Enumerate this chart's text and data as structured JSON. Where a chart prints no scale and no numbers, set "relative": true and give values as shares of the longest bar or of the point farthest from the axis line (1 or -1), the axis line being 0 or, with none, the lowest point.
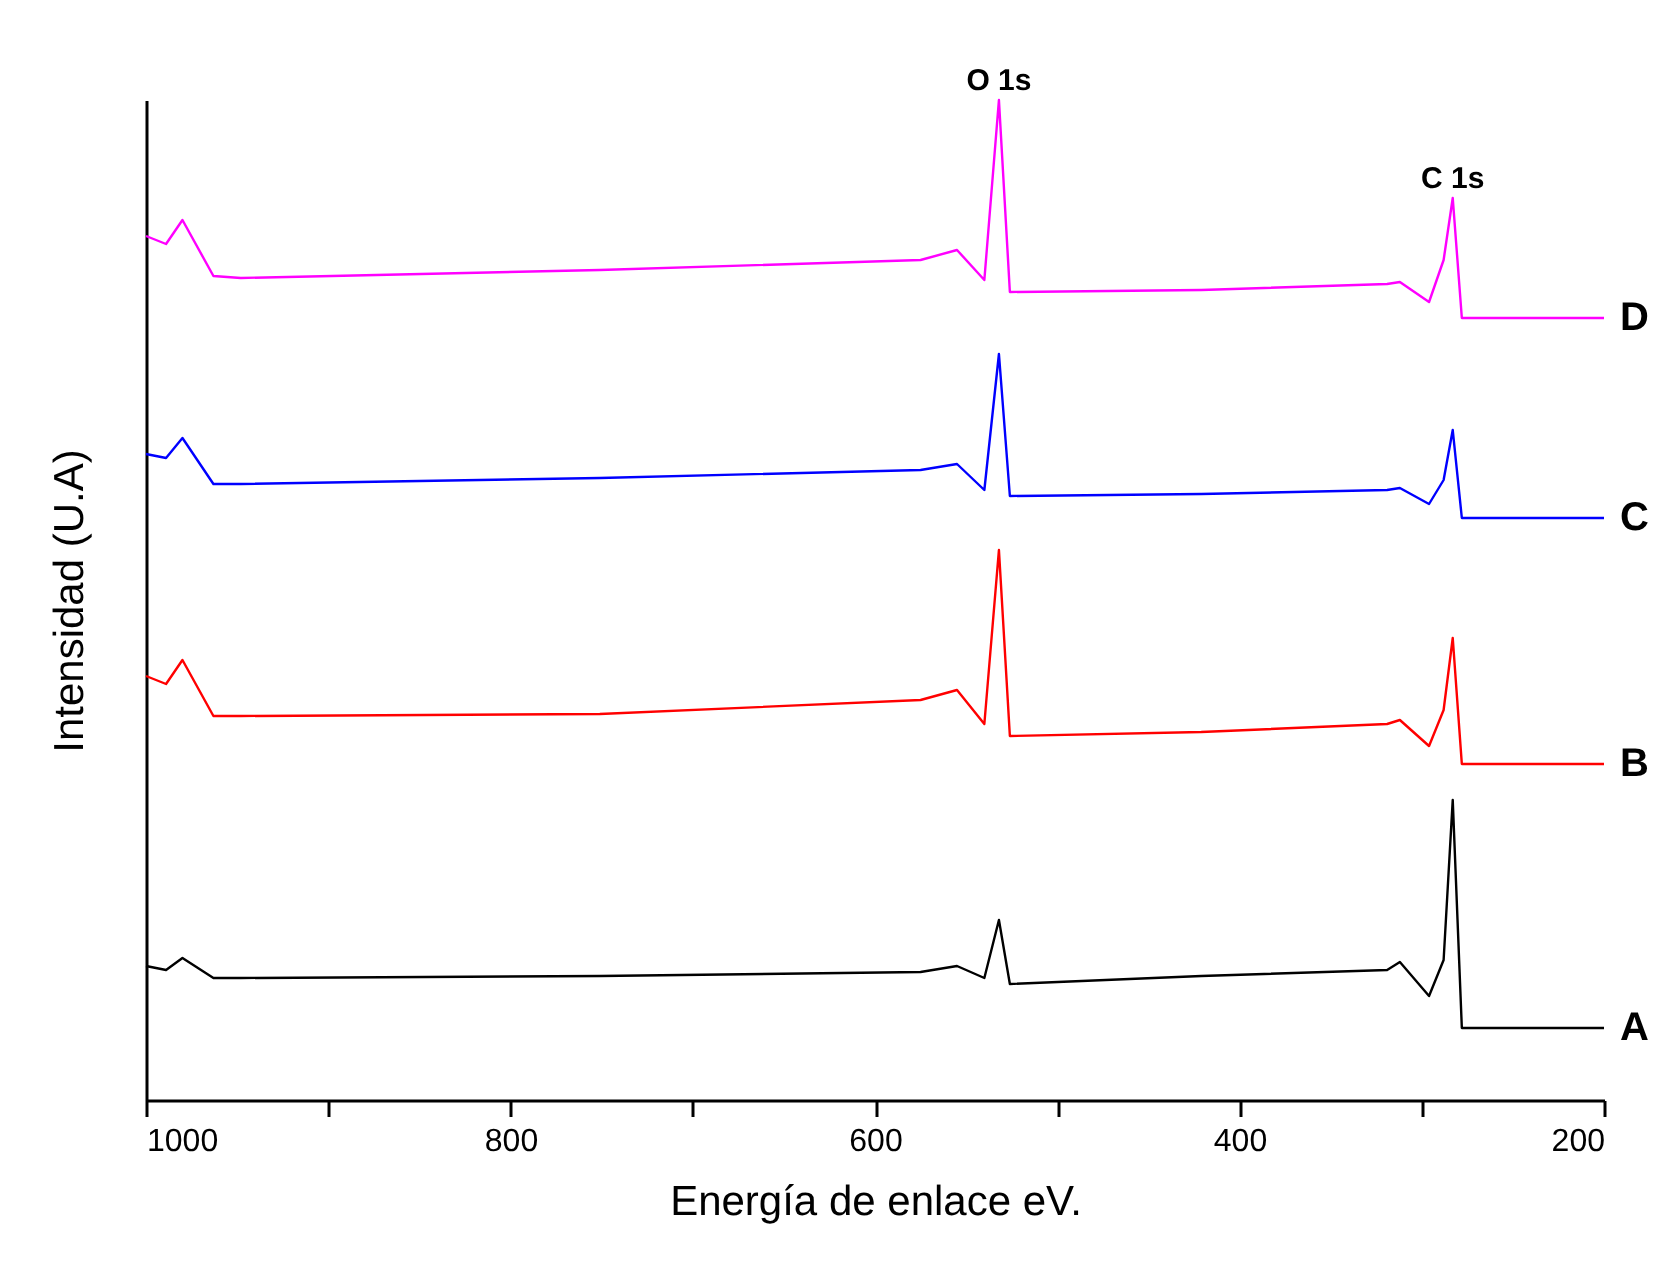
{
  "chart_data": {
    "type": "line",
    "xlabel": "Energía de enlace eV.",
    "ylabel": "Intensidad (U.A)",
    "relative": true,
    "grid": false,
    "xlim": [
      1000,
      200
    ],
    "xticks": [
      1000,
      {
        "value": 900,
        "label": null
      },
      800,
      {
        "value": 700,
        "label": null
      },
      600,
      {
        "value": 500,
        "label": null
      },
      400,
      {
        "value": 300,
        "label": null
      },
      200
    ],
    "x": [
      1000,
      989,
      980,
      963,
      948,
      751,
      575,
      555,
      540,
      532,
      526,
      421,
      319,
      312,
      296,
      288,
      283,
      278,
      200
    ],
    "series": [
      {
        "name": "A",
        "color": "#000000",
        "values": [
          0.134,
          0.13,
          0.142,
          0.122,
          0.122,
          0.124,
          0.128,
          0.134,
          0.122,
          0.18,
          0.116,
          0.124,
          0.13,
          0.138,
          0.104,
          0.14,
          0.3,
          0.072,
          0.072
        ]
      },
      {
        "name": "B",
        "color": "#ff0000",
        "values": [
          0.424,
          0.416,
          0.44,
          0.384,
          0.384,
          0.386,
          0.4,
          0.41,
          0.376,
          0.55,
          0.364,
          0.368,
          0.376,
          0.38,
          0.354,
          0.39,
          0.462,
          0.336,
          0.336
        ]
      },
      {
        "name": "C",
        "color": "#0000ff",
        "values": [
          0.646,
          0.642,
          0.662,
          0.616,
          0.616,
          0.622,
          0.63,
          0.636,
          0.61,
          0.746,
          0.604,
          0.606,
          0.61,
          0.612,
          0.596,
          0.62,
          0.67,
          0.582,
          0.582
        ]
      },
      {
        "name": "D",
        "color": "#ff00ff",
        "values": [
          0.864,
          0.856,
          0.88,
          0.824,
          0.822,
          0.83,
          0.84,
          0.85,
          0.82,
          1.0,
          0.808,
          0.81,
          0.816,
          0.818,
          0.798,
          0.84,
          0.902,
          0.782,
          0.782
        ]
      }
    ],
    "annotations": [
      {
        "text": "O 1s",
        "x": 532,
        "y": 1.0
      },
      {
        "text": "C 1s",
        "x": 283,
        "y": 0.902
      }
    ]
  }
}
